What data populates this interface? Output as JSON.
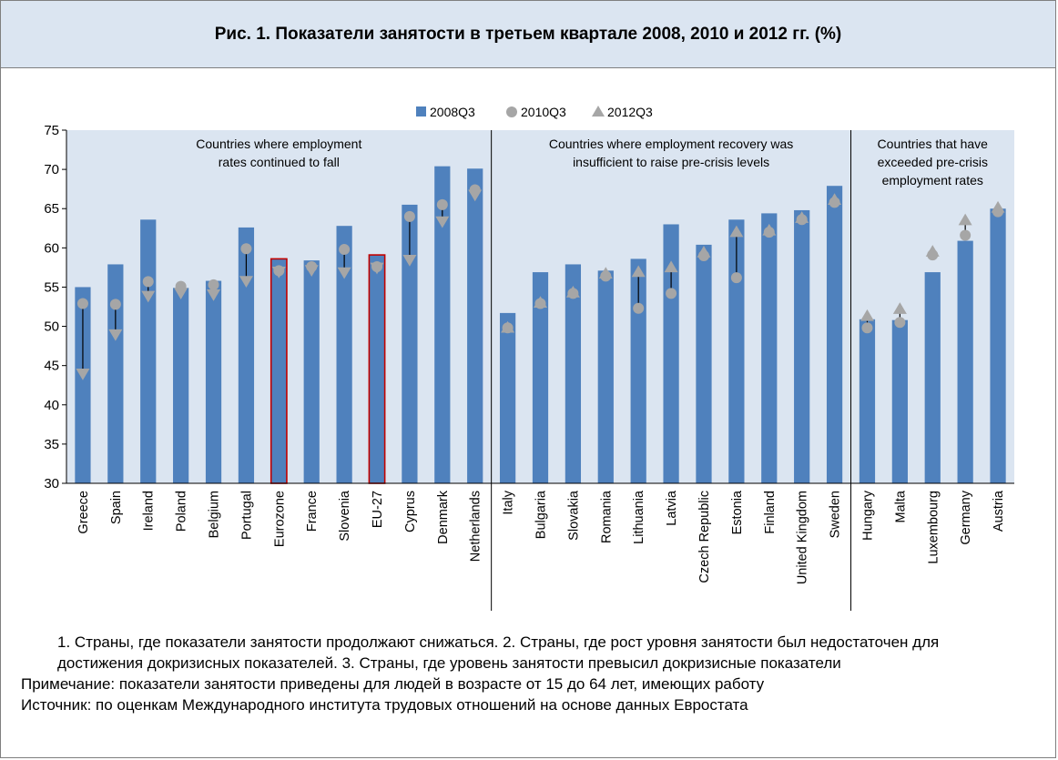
{
  "title": "Рис. 1.  Показатели занятости в третьем квартале 2008, 2010 и 2012 гг. (%)",
  "footnotes": {
    "groups_note": "1. Страны, где показатели занятости продолжают снижаться. 2. Страны, где рост уровня занятости был недостаточен для достижения докризисных показателей. 3. Страны, где уровень занятости превысил докризисные показатели",
    "note": "Примечание: показатели занятости приведены для людей в возрасте от 15 до 64 лет, имеющих работу",
    "source": "Источник: по оценкам Международного института трудовых отношений на основе данных Евростата"
  },
  "colors": {
    "bar": "#4f81bd",
    "bar_highlight_border": "#c00000",
    "marker": "#a6a6a6",
    "plot_background": "#dbe5f1",
    "header_background": "#dbe5f1"
  },
  "chart_data": {
    "type": "bar",
    "ylim": [
      30,
      75
    ],
    "yticks": [
      30,
      35,
      40,
      45,
      50,
      55,
      60,
      65,
      70,
      75
    ],
    "legend_position": "top-center",
    "grid": false,
    "categories": [
      "Greece",
      "Spain",
      "Ireland",
      "Poland",
      "Belgium",
      "Portugal",
      "Eurozone",
      "France",
      "Slovenia",
      "EU-27",
      "Cyprus",
      "Denmark",
      "Netherlands",
      "Italy",
      "Bulgaria",
      "Slovakia",
      "Romania",
      "Lithuania",
      "Latvia",
      "Czech Republic",
      "Estonia",
      "Finland",
      "United Kingdom",
      "Sweden",
      "Hungary",
      "Malta",
      "Luxembourg",
      "Germany",
      "Austria"
    ],
    "highlighted": [
      "Eurozone",
      "EU-27"
    ],
    "series": [
      {
        "name": "2008Q3",
        "type": "bar",
        "values": [
          55.0,
          57.9,
          63.6,
          54.9,
          55.8,
          62.6,
          58.6,
          58.4,
          62.8,
          59.1,
          65.5,
          70.4,
          70.1,
          51.7,
          56.9,
          57.9,
          57.1,
          58.6,
          63.0,
          60.4,
          63.6,
          64.4,
          64.8,
          67.9,
          50.9,
          50.8,
          56.9,
          60.9,
          65.0
        ]
      },
      {
        "name": "2010Q3",
        "type": "circle",
        "values": [
          52.9,
          52.8,
          55.7,
          55.1,
          55.3,
          59.9,
          57.1,
          57.6,
          59.8,
          57.6,
          64.0,
          65.5,
          67.4,
          49.8,
          52.9,
          54.2,
          56.4,
          52.3,
          54.2,
          59.0,
          56.2,
          62.0,
          63.6,
          65.8,
          49.8,
          50.5,
          59.1,
          61.6,
          64.6
        ]
      },
      {
        "name": "2012Q3",
        "type": "triangle",
        "values": [
          44.0,
          49.0,
          53.9,
          54.3,
          54.1,
          55.8,
          57.0,
          57.2,
          56.9,
          57.5,
          58.5,
          63.4,
          66.8,
          49.8,
          53.0,
          54.3,
          56.7,
          56.9,
          57.5,
          59.4,
          62.0,
          62.2,
          63.8,
          66.1,
          51.3,
          52.2,
          59.5,
          63.5,
          65.1
        ]
      }
    ],
    "group_separators_after": [
      "Netherlands",
      "Sweden"
    ],
    "annotations": [
      {
        "text": [
          "Countries where employment",
          "rates continued to fall"
        ],
        "group": 1
      },
      {
        "text": [
          "Countries where employment recovery was",
          "insufficient to raise pre-crisis levels"
        ],
        "group": 2
      },
      {
        "text": [
          "Countries that have",
          "exceeded pre-crisis",
          "employment rates"
        ],
        "group": 3
      }
    ]
  }
}
